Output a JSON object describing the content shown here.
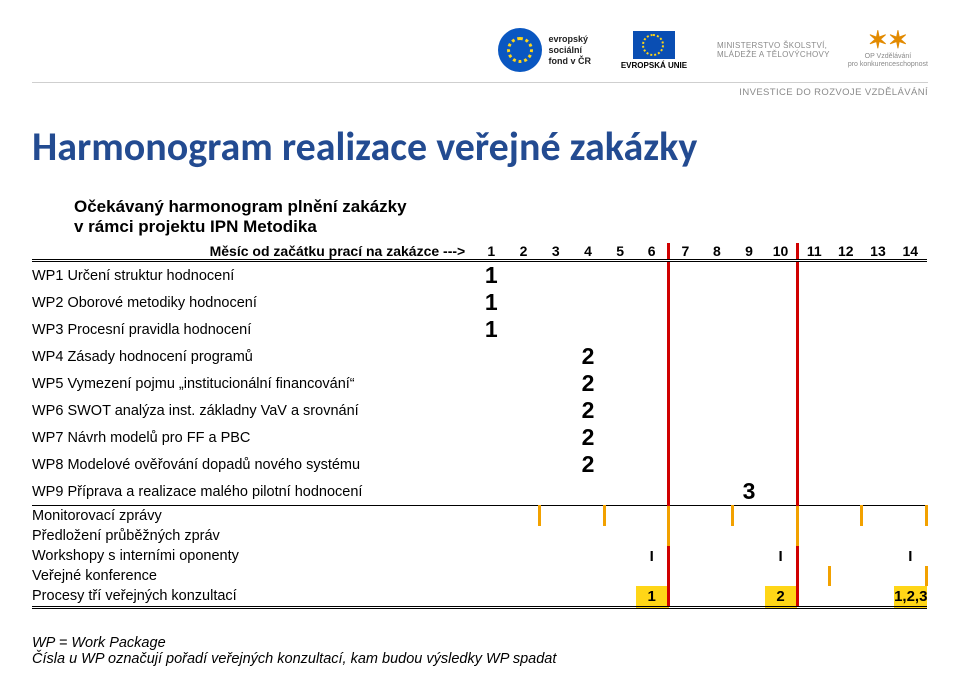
{
  "header": {
    "esf_lines": [
      "evropský",
      "sociální",
      "fond v ČR"
    ],
    "eu_label": "EVROPSKÁ UNIE",
    "ministry_lines": [
      "MINISTERSTVO ŠKOLSTVÍ,",
      "MLÁDEŽE A TĚLOVÝCHOVY"
    ],
    "opvk_lines": [
      "OP Vzdělávání",
      "pro konkurenceschopnost"
    ],
    "invest_line": "INVESTICE DO ROZVOJE VZDĚLÁVÁNÍ"
  },
  "title": "Harmonogram realizace veřejné zakázky",
  "subtitle_l1": "Očekávaný harmonogram plnění zakázky",
  "subtitle_l2": "v rámci projektu IPN Metodika",
  "column_header": "Měsíc od začátku prací na zakázce --->",
  "months": [
    "1",
    "2",
    "3",
    "4",
    "5",
    "6",
    "7",
    "8",
    "9",
    "10",
    "11",
    "12",
    "13",
    "14"
  ],
  "colors": {
    "red": "#d00000",
    "orange": "#f2a100",
    "title_blue": "#234b91"
  },
  "red_after_cols": [
    6,
    10
  ],
  "rows": [
    {
      "label": "WP1 Určení struktur hodnocení",
      "big": "1",
      "big_span": [
        1,
        1
      ]
    },
    {
      "label": "WP2 Oborové metodiky hodnocení",
      "big": "1",
      "big_span": [
        1,
        1
      ]
    },
    {
      "label": "WP3 Procesní pravidla hodnocení",
      "big": "1",
      "big_span": [
        1,
        1
      ]
    },
    {
      "label": "WP4 Zásady hodnocení programů",
      "big": "2",
      "big_span": [
        4,
        4
      ]
    },
    {
      "label": "WP5 Vymezení pojmu „institucionální financování“",
      "big": "2",
      "big_span": [
        4,
        4
      ]
    },
    {
      "label": "WP6 SWOT analýza inst. základny VaV a srovnání",
      "big": "2",
      "big_span": [
        4,
        4
      ]
    },
    {
      "label": "WP7 Návrh modelů pro FF a PBC",
      "big": "2",
      "big_span": [
        4,
        4
      ]
    },
    {
      "label": "WP8 Modelové ověřování dopadů nového systému",
      "big": "2",
      "big_span": [
        4,
        4
      ]
    },
    {
      "label": "WP9 Příprava a realizace malého pilotní hodnocení",
      "big": "3",
      "big_span": [
        9,
        9
      ],
      "bottom_single": true
    },
    {
      "label": "Monitorovací zprávy",
      "orange_after": [
        2,
        4,
        6,
        8,
        10,
        12,
        14
      ]
    },
    {
      "label": "Předložení průběžných zpráv",
      "orange_after": [
        6,
        10
      ]
    },
    {
      "label": "Workshopy s interními oponenty",
      "marks": {
        "6": "I",
        "10": "I",
        "14": "I"
      }
    },
    {
      "label": "Veřejné konference",
      "orange_after": [
        11,
        14
      ]
    },
    {
      "label": "Procesy tří veřejných konzultací",
      "marks": {
        "6": "1",
        "10": "2",
        "14": "1,2,3"
      },
      "mark_bg": "#ffd617",
      "bottom_double": true
    }
  ],
  "footer_l1": "WP = Work Package",
  "footer_l2": "Čísla u WP označují pořadí veřejných konzultací, kam budou výsledky WP spadat"
}
